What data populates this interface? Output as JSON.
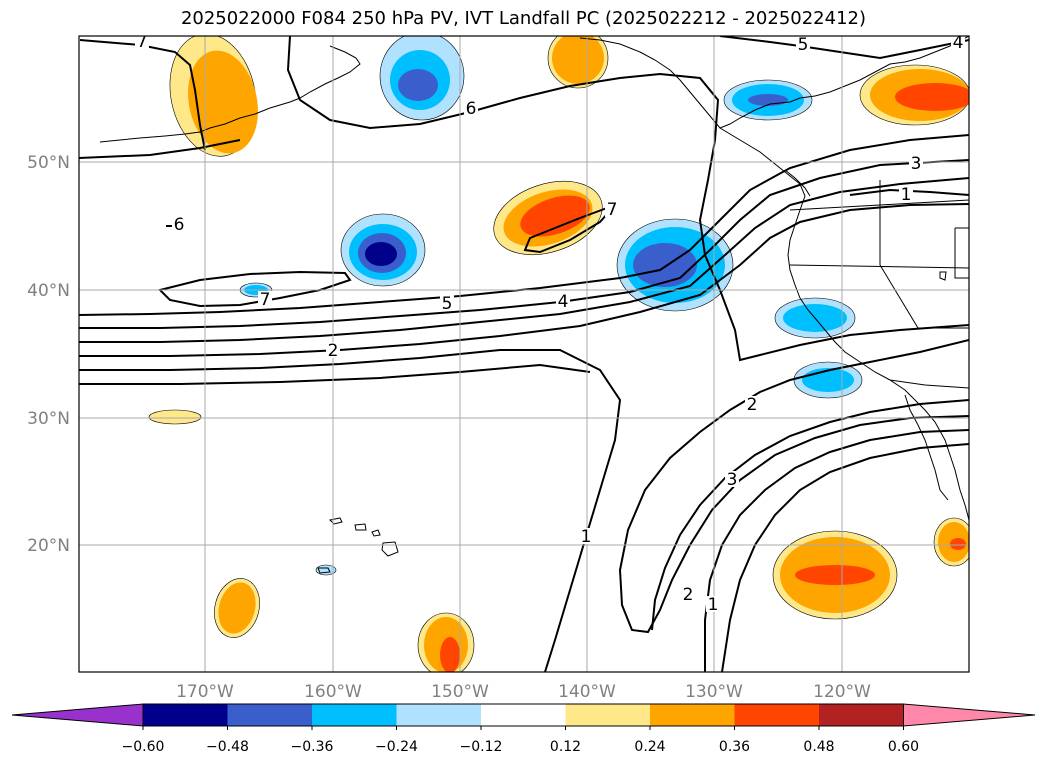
{
  "title": "2025022000 F084 250 hPa PV, IVT Landfall PC (2025022212 - 2025022412)",
  "lat_labels": [
    "50°N",
    "40°N",
    "30°N",
    "20°N"
  ],
  "lon_labels": [
    "170°W",
    "160°W",
    "150°W",
    "140°W",
    "130°W",
    "120°W"
  ],
  "colorbar": {
    "ticks": [
      "−0.60",
      "−0.48",
      "−0.36",
      "−0.24",
      "−0.12",
      "0.12",
      "0.24",
      "0.36",
      "0.48",
      "0.60"
    ],
    "colors": [
      "#9932cc",
      "#00008b",
      "#3a5fcd",
      "#00bfff",
      "#b0e2ff",
      "#ffffff",
      "#ffe88a",
      "#ffa500",
      "#ff4500",
      "#b22222",
      "#ff88aa"
    ]
  },
  "contour_labels": [
    {
      "text": "7",
      "kind": "pv"
    },
    {
      "text": "5",
      "kind": "pv"
    },
    {
      "text": "4",
      "kind": "pv"
    },
    {
      "text": "6",
      "kind": "pv"
    },
    {
      "text": "3",
      "kind": "pv"
    },
    {
      "text": "1",
      "kind": "pv"
    },
    {
      "text": "6",
      "kind": "pv"
    },
    {
      "text": "7",
      "kind": "pv"
    },
    {
      "text": "7",
      "kind": "pv"
    },
    {
      "text": "5",
      "kind": "pv"
    },
    {
      "text": "4",
      "kind": "pv"
    },
    {
      "text": "2",
      "kind": "pv"
    },
    {
      "text": "2",
      "kind": "pv"
    },
    {
      "text": "3",
      "kind": "pv"
    },
    {
      "text": "1",
      "kind": "pv"
    },
    {
      "text": "2",
      "kind": "pv"
    },
    {
      "text": "1",
      "kind": "pv"
    }
  ],
  "anomaly_blobs": [
    {
      "sign": "positive",
      "peak": "0.24"
    },
    {
      "sign": "positive",
      "peak": "0.24"
    },
    {
      "sign": "positive",
      "peak": "0.48"
    },
    {
      "sign": "positive",
      "peak": "0.36"
    },
    {
      "sign": "positive",
      "peak": "0.12"
    },
    {
      "sign": "positive",
      "peak": "0.24"
    },
    {
      "sign": "positive",
      "peak": "0.36"
    },
    {
      "sign": "positive",
      "peak": "0.36"
    },
    {
      "sign": "positive",
      "peak": "0.36"
    },
    {
      "sign": "negative",
      "peak": "-0.36"
    },
    {
      "sign": "negative",
      "peak": "-0.36"
    },
    {
      "sign": "negative",
      "peak": "-0.60"
    },
    {
      "sign": "negative",
      "peak": "-0.48"
    },
    {
      "sign": "negative",
      "peak": "-0.24"
    },
    {
      "sign": "negative",
      "peak": "-0.24"
    },
    {
      "sign": "negative",
      "peak": "-0.24"
    },
    {
      "sign": "negative",
      "peak": "-0.12"
    }
  ]
}
